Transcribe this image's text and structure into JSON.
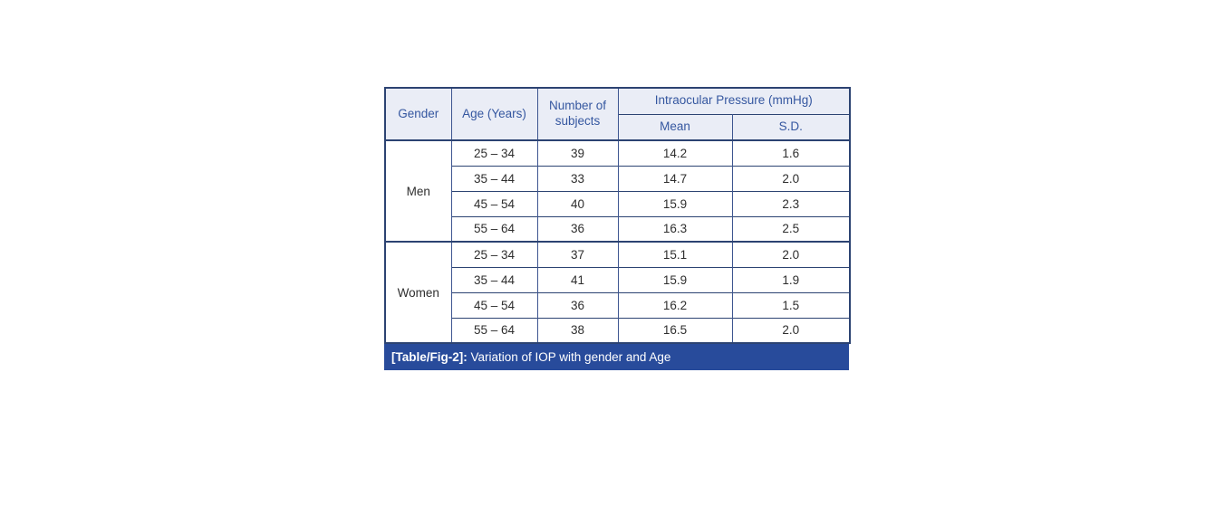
{
  "figure": {
    "header": {
      "gender": "Gender",
      "age": "Age (Years)",
      "subjects": "Number of subjects",
      "iop": "Intraocular Pressure (mmHg)",
      "mean": "Mean",
      "sd": "S.D."
    },
    "groups": [
      {
        "gender": "Men",
        "rows": [
          {
            "age": "25 – 34",
            "subjects": "39",
            "mean": "14.2",
            "sd": "1.6"
          },
          {
            "age": "35 – 44",
            "subjects": "33",
            "mean": "14.7",
            "sd": "2.0"
          },
          {
            "age": "45 – 54",
            "subjects": "40",
            "mean": "15.9",
            "sd": "2.3"
          },
          {
            "age": "55 – 64",
            "subjects": "36",
            "mean": "16.3",
            "sd": "2.5"
          }
        ]
      },
      {
        "gender": "Women",
        "rows": [
          {
            "age": "25 – 34",
            "subjects": "37",
            "mean": "15.1",
            "sd": "2.0"
          },
          {
            "age": "35 – 44",
            "subjects": "41",
            "mean": "15.9",
            "sd": "1.9"
          },
          {
            "age": "45 – 54",
            "subjects": "36",
            "mean": "16.2",
            "sd": "1.5"
          },
          {
            "age": "55 – 64",
            "subjects": "38",
            "mean": "16.5",
            "sd": "2.0"
          }
        ]
      }
    ],
    "caption": {
      "label": "[Table/Fig-2]:",
      "text": " Variation of IOP with gender and Age"
    }
  },
  "colors": {
    "caption_bg": "#284B9B",
    "header_bg": "#EAEDF6",
    "header_text": "#3557A0",
    "border_dark": "#2C4372",
    "border_vertical": "#3D5590",
    "body_text": "#2E2E2E"
  },
  "chart_data": {
    "type": "table",
    "title": "[Table/Fig-2]: Variation of IOP with gender and Age",
    "columns": [
      "Gender",
      "Age (Years)",
      "Number of subjects",
      "Intraocular Pressure (mmHg) — Mean",
      "Intraocular Pressure (mmHg) — S.D."
    ],
    "rows": [
      [
        "Men",
        "25 – 34",
        39,
        14.2,
        1.6
      ],
      [
        "Men",
        "35 – 44",
        33,
        14.7,
        2.0
      ],
      [
        "Men",
        "45 – 54",
        40,
        15.9,
        2.3
      ],
      [
        "Men",
        "55 – 64",
        36,
        16.3,
        2.5
      ],
      [
        "Women",
        "25 – 34",
        37,
        15.1,
        2.0
      ],
      [
        "Women",
        "35 – 44",
        41,
        15.9,
        1.9
      ],
      [
        "Women",
        "45 – 54",
        36,
        16.2,
        1.5
      ],
      [
        "Women",
        "55 – 64",
        38,
        16.5,
        2.0
      ]
    ]
  }
}
